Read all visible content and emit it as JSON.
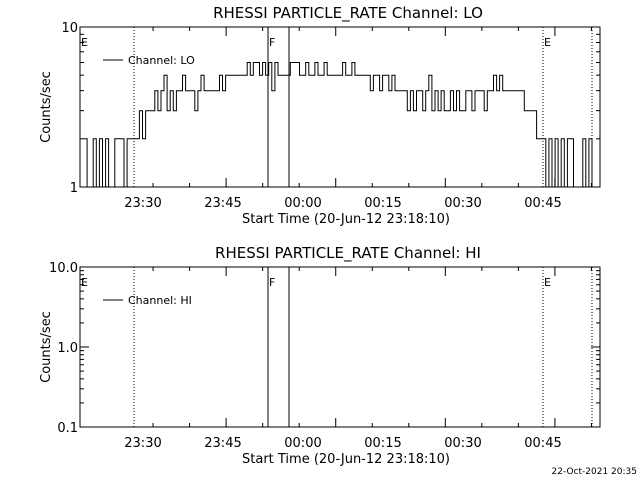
{
  "chart_data": [
    {
      "type": "line",
      "title": "RHESSI PARTICLE_RATE Channel: LO",
      "xlabel": "Start Time (20-Jun-12 23:18:10)",
      "ylabel": "Counts/sec",
      "yscale": "log",
      "ylim": [
        1,
        10
      ],
      "yticks": [
        "10",
        "1"
      ],
      "xlim_min": [
        -8.17,
        63.0
      ],
      "xticks": [
        {
          "label": "23:30",
          "min": 11.83
        },
        {
          "label": "23:45",
          "min": 26.83
        },
        {
          "label": "00:00",
          "min": 41.83
        },
        {
          "label": "00:15",
          "min": 56.83
        },
        {
          "label": "00:30",
          "min": 71.83
        },
        {
          "label": "00:45",
          "min": 86.83
        }
      ],
      "markers": [
        {
          "label": "E",
          "min": 0,
          "style": "dotted"
        },
        {
          "label": "F",
          "min": 17.0,
          "style": "solid"
        },
        {
          "label": "",
          "min": 21.0,
          "style": "solid"
        },
        {
          "label": "E",
          "min": 49.5,
          "style": "dotted"
        },
        {
          "label": "",
          "min": 59.0,
          "style": "dotted"
        }
      ],
      "legend": {
        "position": "top-left",
        "entries": [
          "Channel: LO"
        ]
      },
      "series": [
        {
          "name": "Channel: LO",
          "points": [
            [
              -7.5,
              2
            ],
            [
              -7.1,
              1
            ],
            [
              -6.7,
              1
            ],
            [
              -6.3,
              2
            ],
            [
              -5.9,
              1
            ],
            [
              -5.5,
              2
            ],
            [
              -5.1,
              1
            ],
            [
              -4.7,
              2
            ],
            [
              -4.3,
              1
            ],
            [
              -3.9,
              1
            ],
            [
              -3.5,
              2
            ],
            [
              -3.1,
              2
            ],
            [
              -2.7,
              2
            ],
            [
              -2.3,
              1
            ],
            [
              -1.9,
              2
            ],
            [
              -1.5,
              2
            ],
            [
              -1.1,
              2
            ],
            [
              -0.7,
              2
            ],
            [
              -0.3,
              3
            ],
            [
              0.1,
              2
            ],
            [
              0.5,
              3
            ],
            [
              0.9,
              3
            ],
            [
              1.3,
              3
            ],
            [
              1.7,
              4
            ],
            [
              2.1,
              3
            ],
            [
              2.5,
              4
            ],
            [
              2.9,
              5
            ],
            [
              3.3,
              3
            ],
            [
              3.7,
              4
            ],
            [
              4.1,
              3
            ],
            [
              4.5,
              4
            ],
            [
              4.9,
              4
            ],
            [
              5.3,
              5
            ],
            [
              5.7,
              4
            ],
            [
              6.1,
              4
            ],
            [
              6.5,
              4
            ],
            [
              6.9,
              3
            ],
            [
              7.3,
              4
            ],
            [
              7.7,
              5
            ],
            [
              8.1,
              4
            ],
            [
              8.5,
              4
            ],
            [
              8.9,
              4
            ],
            [
              9.3,
              4
            ],
            [
              9.7,
              4
            ],
            [
              10.1,
              5
            ],
            [
              10.5,
              4
            ],
            [
              10.9,
              5
            ],
            [
              11.3,
              5
            ],
            [
              11.7,
              5
            ],
            [
              12.1,
              5
            ],
            [
              12.5,
              5
            ],
            [
              12.9,
              5
            ],
            [
              13.3,
              5
            ],
            [
              13.7,
              6
            ],
            [
              14.1,
              5
            ],
            [
              14.5,
              6
            ],
            [
              14.9,
              6
            ],
            [
              15.3,
              5
            ],
            [
              15.7,
              6
            ],
            [
              16.1,
              5
            ],
            [
              16.5,
              6
            ],
            [
              16.9,
              4
            ],
            [
              17.3,
              6
            ],
            [
              17.7,
              5
            ],
            [
              18.1,
              5
            ],
            [
              18.5,
              5
            ],
            [
              18.9,
              5
            ],
            [
              19.3,
              6
            ],
            [
              19.7,
              6
            ],
            [
              20.1,
              6
            ],
            [
              20.5,
              5
            ],
            [
              20.9,
              5
            ],
            [
              21.3,
              6
            ],
            [
              21.7,
              5
            ],
            [
              22.1,
              5
            ],
            [
              22.5,
              6
            ],
            [
              22.9,
              5
            ],
            [
              23.3,
              5
            ],
            [
              23.7,
              6
            ],
            [
              24.1,
              5
            ],
            [
              24.5,
              5
            ],
            [
              24.9,
              5
            ],
            [
              25.3,
              5
            ],
            [
              25.7,
              5
            ],
            [
              26.1,
              6
            ],
            [
              26.5,
              5
            ],
            [
              26.9,
              5
            ],
            [
              27.3,
              6
            ],
            [
              27.7,
              5
            ],
            [
              28.1,
              5
            ],
            [
              28.5,
              5
            ],
            [
              28.9,
              5
            ],
            [
              29.3,
              5
            ],
            [
              29.7,
              4
            ],
            [
              30.1,
              5
            ],
            [
              30.5,
              5
            ],
            [
              30.9,
              4
            ],
            [
              31.3,
              5
            ],
            [
              31.7,
              5
            ],
            [
              32.1,
              4
            ],
            [
              32.5,
              5
            ],
            [
              32.9,
              4
            ],
            [
              33.3,
              4
            ],
            [
              33.7,
              4
            ],
            [
              34.1,
              4
            ],
            [
              34.5,
              3
            ],
            [
              34.9,
              4
            ],
            [
              35.3,
              3
            ],
            [
              35.7,
              4
            ],
            [
              36.1,
              4
            ],
            [
              36.5,
              3
            ],
            [
              36.9,
              4
            ],
            [
              37.3,
              5
            ],
            [
              37.7,
              3
            ],
            [
              38.1,
              4
            ],
            [
              38.5,
              3
            ],
            [
              38.9,
              4
            ],
            [
              39.3,
              3
            ],
            [
              39.7,
              3
            ],
            [
              40.1,
              4
            ],
            [
              40.5,
              3
            ],
            [
              40.9,
              4
            ],
            [
              41.3,
              3
            ],
            [
              41.7,
              3
            ],
            [
              42.1,
              4
            ],
            [
              42.5,
              4
            ],
            [
              42.9,
              3
            ],
            [
              43.3,
              4
            ],
            [
              43.7,
              4
            ],
            [
              44.1,
              4
            ],
            [
              44.5,
              3
            ],
            [
              44.9,
              4
            ],
            [
              45.3,
              4
            ],
            [
              45.7,
              5
            ],
            [
              46.1,
              4
            ],
            [
              46.5,
              5
            ],
            [
              46.9,
              4
            ],
            [
              47.3,
              4
            ],
            [
              47.7,
              4
            ],
            [
              48.1,
              4
            ],
            [
              48.5,
              4
            ],
            [
              48.9,
              4
            ],
            [
              49.3,
              4
            ],
            [
              49.7,
              3
            ],
            [
              50.1,
              3
            ],
            [
              50.5,
              3
            ],
            [
              50.9,
              3
            ],
            [
              51.3,
              2
            ],
            [
              51.7,
              2
            ],
            [
              52.1,
              2
            ],
            [
              52.5,
              1
            ],
            [
              52.9,
              2
            ],
            [
              53.3,
              1
            ],
            [
              53.7,
              2
            ],
            [
              54.1,
              1
            ],
            [
              54.5,
              2
            ],
            [
              54.9,
              1
            ],
            [
              55.3,
              2
            ],
            [
              55.7,
              2
            ],
            [
              56.1,
              1
            ],
            [
              56.5,
              1
            ],
            [
              56.9,
              1
            ],
            [
              57.3,
              2
            ],
            [
              57.7,
              1
            ],
            [
              58.1,
              2
            ],
            [
              58.5,
              1
            ]
          ]
        }
      ]
    },
    {
      "type": "line",
      "title": "RHESSI PARTICLE_RATE Channel: HI",
      "xlabel": "Start Time (20-Jun-12 23:18:10)",
      "ylabel": "Counts/sec",
      "yscale": "log",
      "ylim": [
        0.1,
        10
      ],
      "yticks": [
        "10.0",
        "1.0",
        "0.1"
      ],
      "xlim_min": [
        -8.17,
        63.0
      ],
      "xticks": [
        {
          "label": "23:30",
          "min": 11.83
        },
        {
          "label": "23:45",
          "min": 26.83
        },
        {
          "label": "00:00",
          "min": 41.83
        },
        {
          "label": "00:15",
          "min": 56.83
        },
        {
          "label": "00:30",
          "min": 71.83
        },
        {
          "label": "00:45",
          "min": 86.83
        }
      ],
      "markers": [
        {
          "label": "E",
          "min": 0,
          "style": "dotted"
        },
        {
          "label": "F",
          "min": 17.0,
          "style": "solid"
        },
        {
          "label": "",
          "min": 21.0,
          "style": "solid"
        },
        {
          "label": "E",
          "min": 49.5,
          "style": "dotted"
        },
        {
          "label": "",
          "min": 59.0,
          "style": "dotted"
        }
      ],
      "legend": {
        "position": "top-left",
        "entries": [
          "Channel: HI"
        ]
      },
      "series": [
        {
          "name": "Channel: HI",
          "points": []
        }
      ]
    }
  ],
  "timestamp": "22-Oct-2021 20:35"
}
